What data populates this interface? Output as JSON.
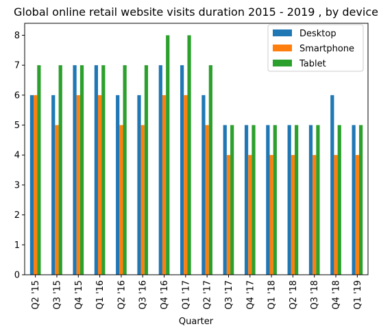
{
  "chart_data": {
    "type": "bar",
    "title": "Global online retail website visits duration 2015 - 2019 , by device",
    "xlabel": "Quarter",
    "ylabel": "",
    "ylim": [
      0,
      8.4
    ],
    "yticks": [
      0,
      1,
      2,
      3,
      4,
      5,
      6,
      7,
      8
    ],
    "legend_position": "top-right",
    "grid": false,
    "categories": [
      "Q2 '15",
      "Q3 '15",
      "Q4 '15",
      "Q1 '16",
      "Q2 '16",
      "Q3 '16",
      "Q4 '16",
      "Q1 '17",
      "Q2 '17",
      "Q3 '17",
      "Q4 '17",
      "Q1 '18",
      "Q2 '18",
      "Q3 '18",
      "Q4 '18",
      "Q1 '19"
    ],
    "series": [
      {
        "name": "Desktop",
        "color": "#1f77b4",
        "values": [
          6,
          6,
          7,
          7,
          6,
          6,
          7,
          7,
          6,
          5,
          5,
          5,
          5,
          5,
          6,
          5
        ]
      },
      {
        "name": "Smartphone",
        "color": "#ff7f0e",
        "values": [
          6,
          5,
          6,
          6,
          5,
          5,
          6,
          6,
          5,
          4,
          4,
          4,
          4,
          4,
          4,
          4
        ]
      },
      {
        "name": "Tablet",
        "color": "#2ca02c",
        "values": [
          7,
          7,
          7,
          7,
          7,
          7,
          8,
          8,
          7,
          5,
          5,
          5,
          5,
          5,
          5,
          5
        ]
      }
    ]
  }
}
